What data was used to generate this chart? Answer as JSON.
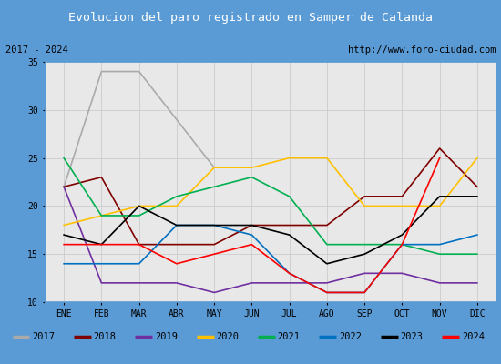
{
  "title": "Evolucion del paro registrado en Samper de Calanda",
  "title_bg": "#5b9bd5",
  "subtitle_left": "2017 - 2024",
  "subtitle_right": "http://www.foro-ciudad.com",
  "months": [
    "ENE",
    "FEB",
    "MAR",
    "ABR",
    "MAY",
    "JUN",
    "JUL",
    "AGO",
    "SEP",
    "OCT",
    "NOV",
    "DIC"
  ],
  "ylim": [
    10,
    35
  ],
  "yticks": [
    10,
    15,
    20,
    25,
    30,
    35
  ],
  "series": {
    "2017": {
      "color": "#aaaaaa",
      "data": [
        22,
        34,
        34,
        29,
        24,
        null,
        null,
        null,
        null,
        null,
        null,
        null
      ]
    },
    "2018": {
      "color": "#800000",
      "data": [
        22,
        23,
        16,
        16,
        16,
        18,
        18,
        18,
        21,
        21,
        26,
        22
      ]
    },
    "2019": {
      "color": "#7030a0",
      "data": [
        22,
        12,
        12,
        12,
        11,
        12,
        12,
        12,
        13,
        13,
        12,
        12
      ]
    },
    "2020": {
      "color": "#ffc000",
      "data": [
        18,
        19,
        20,
        20,
        24,
        24,
        25,
        25,
        20,
        20,
        20,
        25
      ]
    },
    "2021": {
      "color": "#00b050",
      "data": [
        25,
        19,
        19,
        21,
        22,
        23,
        21,
        16,
        16,
        16,
        15,
        15
      ]
    },
    "2022": {
      "color": "#0070c0",
      "data": [
        14,
        14,
        14,
        18,
        18,
        17,
        13,
        11,
        11,
        16,
        16,
        17
      ]
    },
    "2023": {
      "color": "#000000",
      "data": [
        17,
        16,
        20,
        18,
        18,
        18,
        17,
        14,
        15,
        17,
        21,
        21
      ]
    },
    "2024": {
      "color": "#ff0000",
      "data": [
        16,
        16,
        16,
        14,
        15,
        16,
        13,
        11,
        11,
        16,
        25,
        null
      ]
    }
  }
}
